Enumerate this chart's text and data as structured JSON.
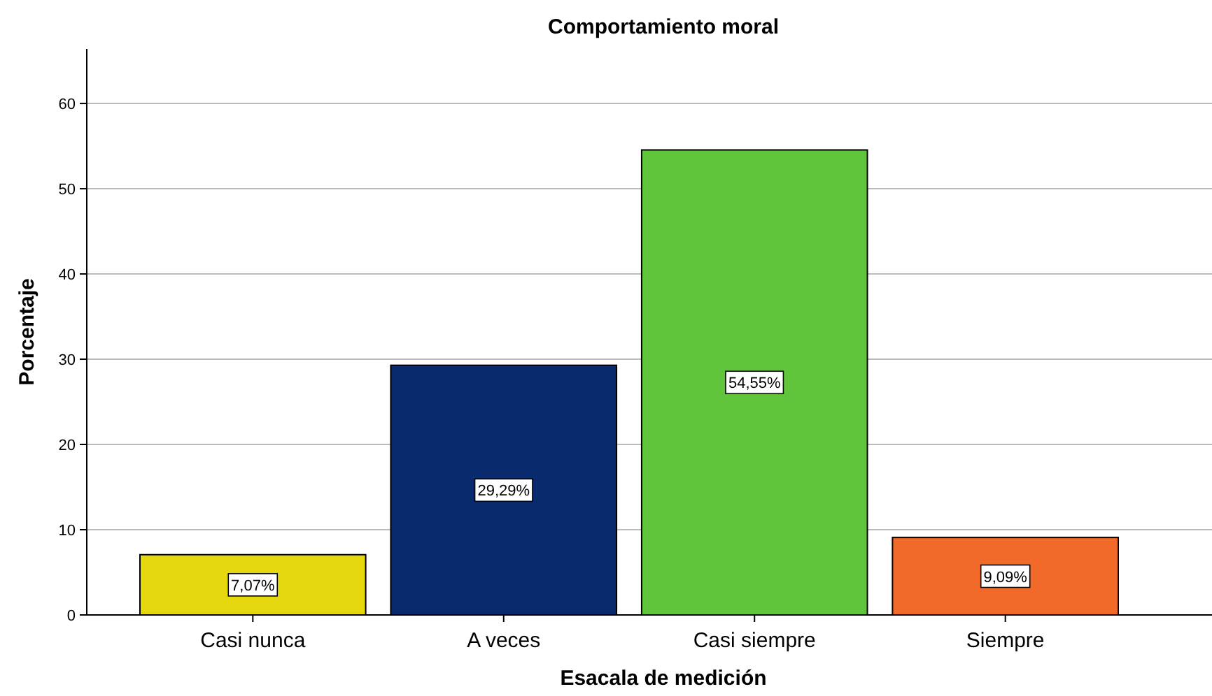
{
  "chart_data": {
    "type": "bar",
    "title": "Comportamiento moral",
    "xlabel": "Esacala de medición",
    "ylabel": "Porcentaje",
    "categories": [
      "Casi nunca",
      "A veces",
      "Casi siempre",
      "Siempre"
    ],
    "values": [
      7.07,
      29.29,
      54.55,
      9.09
    ],
    "colors": [
      "#e6d80f",
      "#0a2a6e",
      "#60c53b",
      "#f26a2a"
    ],
    "value_labels": [
      "7,07%",
      "29,29%",
      "54,55%",
      "9,09%"
    ],
    "ylim": [
      0,
      66.4
    ],
    "yticks": [
      0,
      10,
      20,
      30,
      40,
      50,
      60
    ],
    "grid": "y"
  }
}
